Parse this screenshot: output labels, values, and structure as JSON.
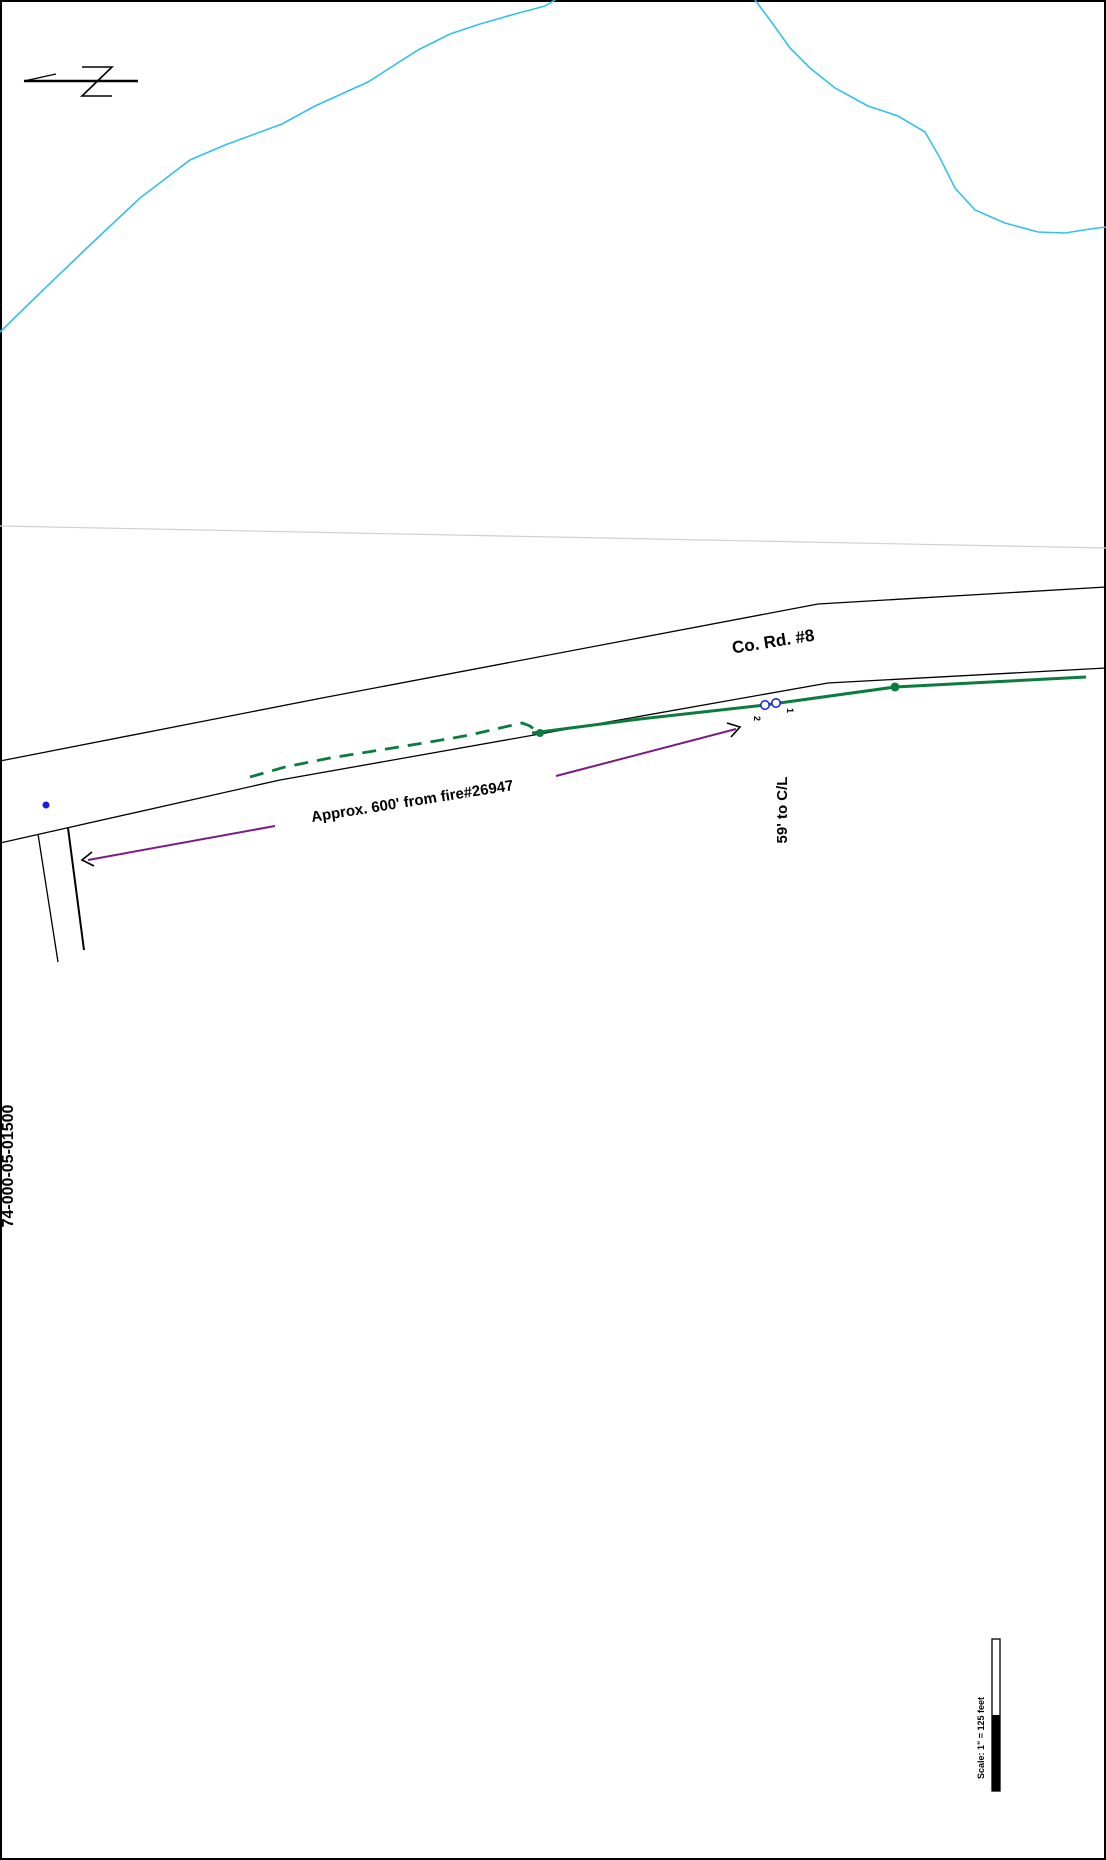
{
  "labels": {
    "road_name": "Co. Rd. #8",
    "distance_note": "Approx. 600' from fire#26947",
    "centerline_offset": "59' to C/L",
    "parcel_id": "74-000-05-01500",
    "scale": "Scale: 1\" = 125 feet",
    "point_2": "2",
    "point_1": "1"
  },
  "colors": {
    "water": "#33c1ec",
    "route": "#0a7d3e",
    "leader": "#7b1a86",
    "marker": "#1a1ae6",
    "line": "#000000",
    "parcel_boundary": "#d0d0d0"
  },
  "icons": {
    "north_arrow": "north-arrow-icon",
    "site_marker": "dot-icon",
    "points": "double-circle-icon"
  }
}
